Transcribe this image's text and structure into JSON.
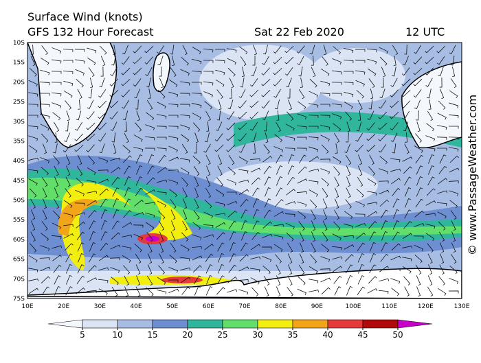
{
  "header": {
    "title": "Surface Wind (knots)",
    "subtitle": "GFS 132 Hour Forecast",
    "date": "Sat 22 Feb 2020",
    "time": "12 UTC"
  },
  "latitude_labels": [
    "10S",
    "15S",
    "20S",
    "25S",
    "30S",
    "35S",
    "40S",
    "45S",
    "50S",
    "55S",
    "60S",
    "65S",
    "70S",
    "75S"
  ],
  "longitude_labels": [
    "10E",
    "20E",
    "30E",
    "40E",
    "50E",
    "60E",
    "70E",
    "80E",
    "90E",
    "100E",
    "110E",
    "120E",
    "130E"
  ],
  "colorbar": {
    "ticks": [
      5,
      10,
      15,
      20,
      25,
      30,
      35,
      40,
      45,
      50
    ],
    "colors": [
      "#f4f7fc",
      "#dbe4f4",
      "#a8bde4",
      "#6d8fd2",
      "#2fb69c",
      "#62de6a",
      "#f2ef10",
      "#f3a51a",
      "#e53a3c",
      "#b20a0a",
      "#c800c8"
    ]
  },
  "credit": "© www.PassageWeather.com"
}
